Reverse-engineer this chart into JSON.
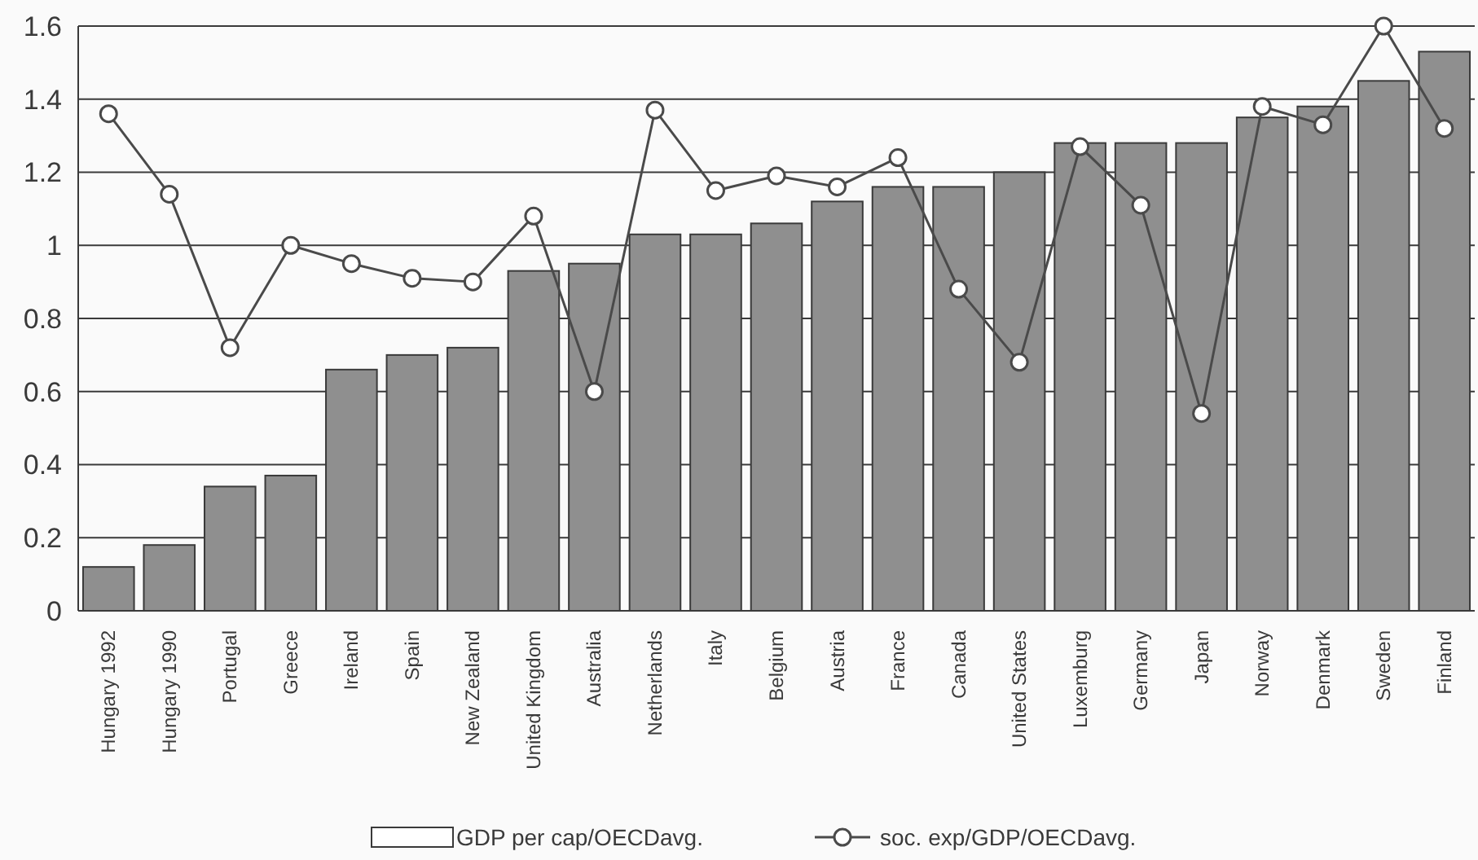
{
  "chart_data": {
    "type": "bar",
    "categories": [
      "Hungary 1992",
      "Hungary 1990",
      "Portugal",
      "Greece",
      "Ireland",
      "Spain",
      "New Zealand",
      "United Kingdom",
      "Australia",
      "Netherlands",
      "Italy",
      "Belgium",
      "Austria",
      "France",
      "Canada",
      "United States",
      "Luxemburg",
      "Germany",
      "Japan",
      "Norway",
      "Denmark",
      "Sweden",
      "Finland"
    ],
    "series": [
      {
        "name": "GDP per cap/OECDavg.",
        "color": "#8f8f8f",
        "values": [
          0.12,
          0.18,
          0.34,
          0.37,
          0.66,
          0.7,
          0.72,
          0.93,
          0.95,
          1.03,
          1.03,
          1.06,
          1.12,
          1.16,
          1.16,
          1.2,
          1.28,
          1.28,
          1.28,
          1.35,
          1.38,
          1.45,
          1.53
        ]
      },
      {
        "name": "soc. exp/GDP/OECDavg.",
        "type": "line",
        "color": "#4a4a4a",
        "marker": "circle",
        "values": [
          1.36,
          1.14,
          0.72,
          1.0,
          0.95,
          0.91,
          0.9,
          1.08,
          0.6,
          1.37,
          1.15,
          1.19,
          1.16,
          1.24,
          0.88,
          0.68,
          1.27,
          1.11,
          0.54,
          1.38,
          1.33,
          1.6,
          1.32
        ]
      }
    ],
    "ylim": [
      0,
      1.6
    ],
    "yticks": [
      0,
      0.2,
      0.4,
      0.6,
      0.8,
      1,
      1.2,
      1.4,
      1.6
    ],
    "grid": "y",
    "legend": "bottom"
  }
}
